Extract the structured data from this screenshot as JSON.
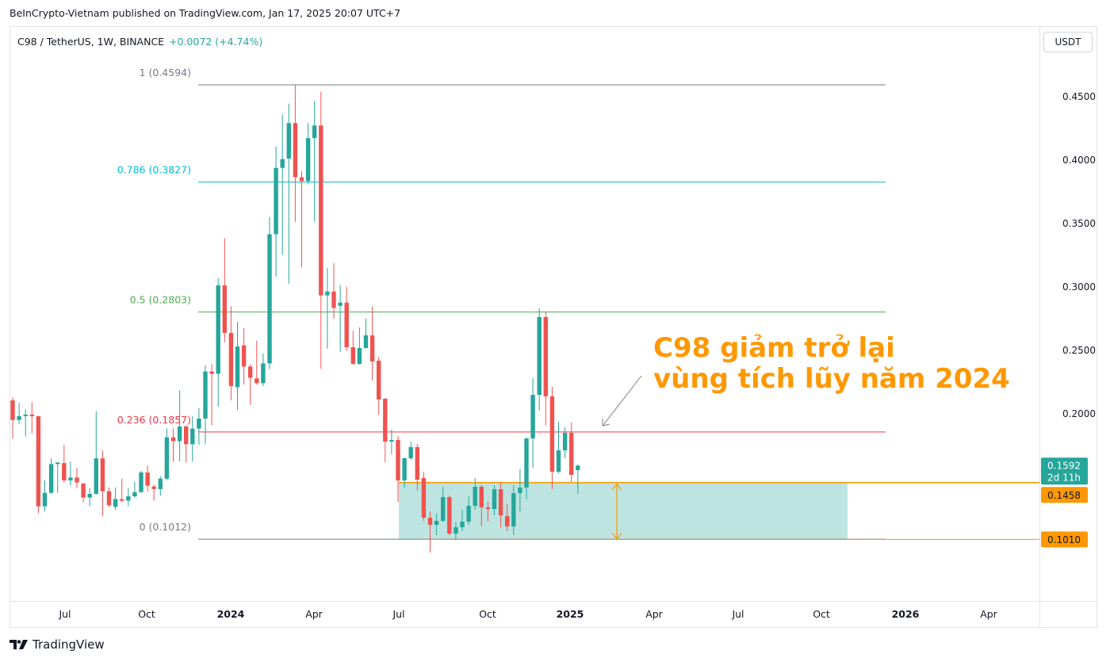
{
  "caption": "BeInCrypto-Vietnam published on TradingView.com, Jan 17, 2025 20:07 UTC+7",
  "symbol": {
    "title": "C98 / TetherUS, 1W, BINANCE",
    "change": "+0.0072 (+4.74%)"
  },
  "currency_button": "USDT",
  "brand": "TradingView",
  "colors": {
    "up": "#26a69a",
    "down": "#ef5350",
    "accent": "#ff9800",
    "zone": "#b2dfdb"
  },
  "chart_data": {
    "type": "candlestick",
    "interval": "1W",
    "ylim": [
      0.06,
      0.48
    ],
    "y_ticks": [
      "0.4500",
      "0.4000",
      "0.3500",
      "0.3000",
      "0.2500",
      "0.2000"
    ],
    "x_ticks": [
      {
        "label": "Jul",
        "bold": false
      },
      {
        "label": "Oct",
        "bold": false
      },
      {
        "label": "2024",
        "bold": true
      },
      {
        "label": "Apr",
        "bold": false
      },
      {
        "label": "Jul",
        "bold": false
      },
      {
        "label": "Oct",
        "bold": false
      },
      {
        "label": "2025",
        "bold": true
      },
      {
        "label": "Apr",
        "bold": false
      },
      {
        "label": "Jul",
        "bold": false
      },
      {
        "label": "Oct",
        "bold": false
      },
      {
        "label": "2026",
        "bold": true
      },
      {
        "label": "Apr",
        "bold": false
      }
    ],
    "ohlc": [
      [
        0.2106,
        0.213,
        0.1804,
        0.1952
      ],
      [
        0.1952,
        0.2086,
        0.192,
        0.1982
      ],
      [
        0.1987,
        0.2036,
        0.1821,
        0.1994
      ],
      [
        0.1994,
        0.2093,
        0.1846,
        0.1982
      ],
      [
        0.1982,
        0.1982,
        0.1216,
        0.1271
      ],
      [
        0.1271,
        0.1476,
        0.1229,
        0.1377
      ],
      [
        0.1377,
        0.1649,
        0.1369,
        0.1604
      ],
      [
        0.1612,
        0.1617,
        0.1377,
        0.1617
      ],
      [
        0.1612,
        0.1755,
        0.1459,
        0.1476
      ],
      [
        0.1476,
        0.1624,
        0.1434,
        0.1498
      ],
      [
        0.1498,
        0.1575,
        0.1414,
        0.1459
      ],
      [
        0.1451,
        0.1451,
        0.1303,
        0.134
      ],
      [
        0.134,
        0.1414,
        0.1271,
        0.1369
      ],
      [
        0.1369,
        0.202,
        0.1365,
        0.1649
      ],
      [
        0.1649,
        0.1711,
        0.1192,
        0.139
      ],
      [
        0.139,
        0.142,
        0.1267,
        0.1279
      ],
      [
        0.1267,
        0.142,
        0.1242,
        0.1328
      ],
      [
        0.1328,
        0.1489,
        0.1303,
        0.1316
      ],
      [
        0.1316,
        0.1414,
        0.1271,
        0.135
      ],
      [
        0.135,
        0.1464,
        0.134,
        0.1383
      ],
      [
        0.1383,
        0.1551,
        0.1378,
        0.1538
      ],
      [
        0.1538,
        0.1593,
        0.139,
        0.1434
      ],
      [
        0.1427,
        0.1444,
        0.1316,
        0.1407
      ],
      [
        0.1407,
        0.1509,
        0.1353,
        0.1489
      ],
      [
        0.1489,
        0.1884,
        0.1476,
        0.1815
      ],
      [
        0.1815,
        0.1884,
        0.1625,
        0.1785
      ],
      [
        0.1785,
        0.2185,
        0.1625,
        0.1901
      ],
      [
        0.1901,
        0.1909,
        0.1617,
        0.1761
      ],
      [
        0.1761,
        0.1983,
        0.1625,
        0.1884
      ],
      [
        0.1884,
        0.2045,
        0.1756,
        0.1963
      ],
      [
        0.1963,
        0.2383,
        0.1761,
        0.2334
      ],
      [
        0.2334,
        0.2391,
        0.1909,
        0.2316
      ],
      [
        0.2316,
        0.307,
        0.2057,
        0.3013
      ],
      [
        0.3013,
        0.3386,
        0.2563,
        0.2638
      ],
      [
        0.2638,
        0.2848,
        0.2106,
        0.2218
      ],
      [
        0.221,
        0.2724,
        0.2032,
        0.2531
      ],
      [
        0.2539,
        0.2675,
        0.223,
        0.2373
      ],
      [
        0.2373,
        0.2391,
        0.2069,
        0.2284
      ],
      [
        0.2279,
        0.2576,
        0.223,
        0.2242
      ],
      [
        0.2242,
        0.2477,
        0.2218,
        0.2398
      ],
      [
        0.2398,
        0.3551,
        0.2353,
        0.3416
      ],
      [
        0.3416,
        0.4107,
        0.3082,
        0.3939
      ],
      [
        0.3939,
        0.4359,
        0.3255,
        0.4008
      ],
      [
        0.4013,
        0.4445,
        0.3025,
        0.4292
      ],
      [
        0.4292,
        0.4594,
        0.3514,
        0.3865
      ],
      [
        0.3865,
        0.3915,
        0.3156,
        0.3835
      ],
      [
        0.3835,
        0.4292,
        0.3811,
        0.4174
      ],
      [
        0.4174,
        0.4465,
        0.3514,
        0.4273
      ],
      [
        0.4273,
        0.4539,
        0.2353,
        0.2934
      ],
      [
        0.2934,
        0.3149,
        0.2514,
        0.2964
      ],
      [
        0.2964,
        0.3188,
        0.2749,
        0.2835
      ],
      [
        0.2852,
        0.3015,
        0.2489,
        0.2877
      ],
      [
        0.2877,
        0.3003,
        0.2497,
        0.2525
      ],
      [
        0.2525,
        0.2656,
        0.2388,
        0.2394
      ],
      [
        0.2394,
        0.2681,
        0.2388,
        0.2519
      ],
      [
        0.2519,
        0.275,
        0.2513,
        0.2619
      ],
      [
        0.2619,
        0.2844,
        0.2263,
        0.2413
      ],
      [
        0.2419,
        0.245,
        0.1994,
        0.2113
      ],
      [
        0.2119,
        0.2125,
        0.1619,
        0.1781
      ],
      [
        0.1781,
        0.1875,
        0.1681,
        0.1794
      ],
      [
        0.1794,
        0.1825,
        0.1306,
        0.1475
      ],
      [
        0.1475,
        0.1656,
        0.1419,
        0.165
      ],
      [
        0.165,
        0.1781,
        0.1638,
        0.1738
      ],
      [
        0.1738,
        0.1763,
        0.1394,
        0.1481
      ],
      [
        0.1494,
        0.1544,
        0.1156,
        0.1181
      ],
      [
        0.1181,
        0.1231,
        0.0906,
        0.1125
      ],
      [
        0.1125,
        0.1213,
        0.1044,
        0.1156
      ],
      [
        0.1156,
        0.1425,
        0.115,
        0.1344
      ],
      [
        0.1344,
        0.1356,
        0.1044,
        0.1056
      ],
      [
        0.1056,
        0.115,
        0.1006,
        0.1106
      ],
      [
        0.1106,
        0.1244,
        0.1075,
        0.115
      ],
      [
        0.115,
        0.135,
        0.1125,
        0.1275
      ],
      [
        0.1275,
        0.1494,
        0.1244,
        0.1425
      ],
      [
        0.1425,
        0.1438,
        0.1113,
        0.1263
      ],
      [
        0.1263,
        0.1306,
        0.115,
        0.125
      ],
      [
        0.125,
        0.1438,
        0.12,
        0.1406
      ],
      [
        0.1406,
        0.1463,
        0.1106,
        0.12
      ],
      [
        0.1194,
        0.1288,
        0.1075,
        0.1113
      ],
      [
        0.1113,
        0.1438,
        0.1044,
        0.1375
      ],
      [
        0.1375,
        0.1563,
        0.1231,
        0.1419
      ],
      [
        0.1419,
        0.1813,
        0.1325,
        0.1806
      ],
      [
        0.1806,
        0.2281,
        0.1575,
        0.215
      ],
      [
        0.215,
        0.2831,
        0.2025,
        0.2763
      ],
      [
        0.2763,
        0.2806,
        0.1906,
        0.2138
      ],
      [
        0.2138,
        0.2213,
        0.1406,
        0.1544
      ],
      [
        0.1544,
        0.1938,
        0.1531,
        0.1713
      ],
      [
        0.1713,
        0.1894,
        0.165,
        0.185
      ],
      [
        0.185,
        0.1931,
        0.1463,
        0.1519
      ],
      [
        0.1556,
        0.16,
        0.1369,
        0.1592
      ]
    ],
    "fib_levels": [
      {
        "label": "1 (0.4594)",
        "value": 0.4594,
        "color": "#787b86"
      },
      {
        "label": "0.786 (0.3827)",
        "value": 0.3827,
        "color": "#00bcd4"
      },
      {
        "label": "0.5 (0.2803)",
        "value": 0.2803,
        "color": "#4caf50"
      },
      {
        "label": "0.236 (0.1857)",
        "value": 0.1857,
        "color": "#f23645"
      },
      {
        "label": "0 (0.1012)",
        "value": 0.1012,
        "color": "#787b86"
      }
    ],
    "zone": {
      "top": 0.1458,
      "bottom": 0.101
    },
    "price_labels": [
      {
        "price": "0.1592",
        "sub": "2d 11h",
        "value": 0.1592,
        "kind": "last"
      },
      {
        "price": "0.1458",
        "value": 0.1458,
        "kind": "level"
      },
      {
        "price": "0.1010",
        "value": 0.101,
        "kind": "level"
      }
    ],
    "annotation": [
      "C98 giảm trở lại",
      "vùng tích lũy năm 2024"
    ]
  }
}
